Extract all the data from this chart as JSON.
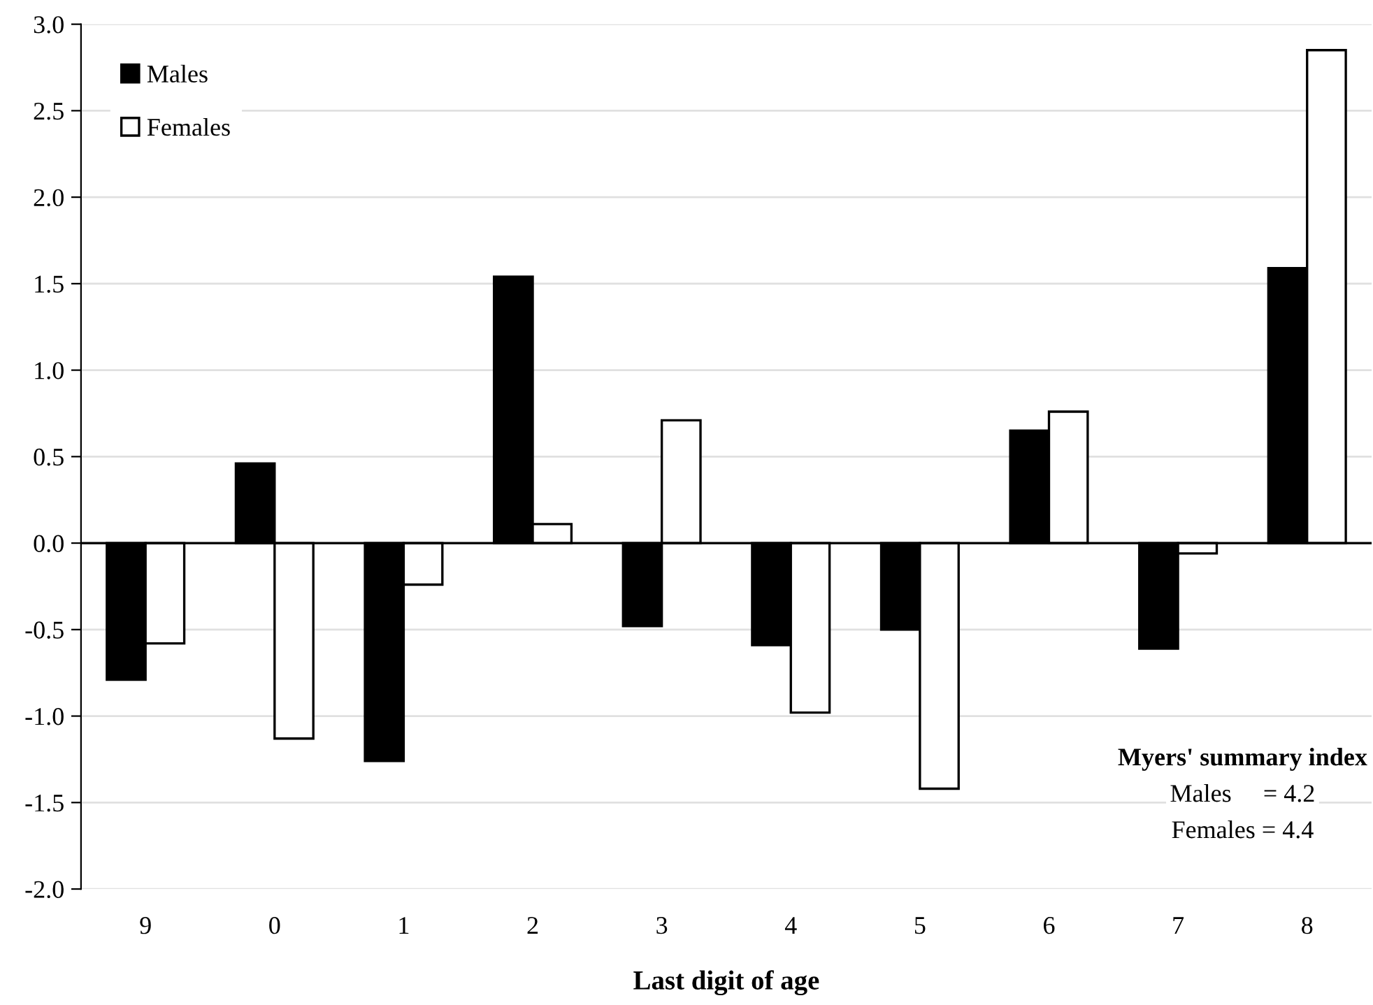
{
  "chart_data": {
    "type": "bar",
    "xlabel": "Last digit of age",
    "categories": [
      "9",
      "0",
      "1",
      "2",
      "3",
      "4",
      "5",
      "6",
      "7",
      "8"
    ],
    "series": [
      {
        "name": "Males",
        "color": "#000000",
        "values": [
          -0.79,
          0.46,
          -1.26,
          1.54,
          -0.48,
          -0.59,
          -0.5,
          0.65,
          -0.61,
          1.59
        ]
      },
      {
        "name": "Females",
        "color": "#ffffff",
        "values": [
          -0.58,
          -1.13,
          -0.24,
          0.11,
          0.71,
          -0.98,
          -1.42,
          0.76,
          -0.06,
          2.85
        ]
      }
    ],
    "ylim": [
      -2.0,
      3.0
    ],
    "yticks": [
      {
        "value": -2.0,
        "label": "-2.0"
      },
      {
        "value": -1.5,
        "label": "-1.5"
      },
      {
        "value": -1.0,
        "label": "-1.0"
      },
      {
        "value": -0.5,
        "label": "-0.5"
      },
      {
        "value": 0.0,
        "label": "0.0"
      },
      {
        "value": 0.5,
        "label": "0.5"
      },
      {
        "value": 1.0,
        "label": "1.0"
      },
      {
        "value": 1.5,
        "label": "1.5"
      },
      {
        "value": 2.0,
        "label": "2.0"
      },
      {
        "value": 2.5,
        "label": "2.5"
      },
      {
        "value": 3.0,
        "label": "3.0"
      }
    ],
    "grid": "y",
    "legend": "top left",
    "annotations": [
      "Myers' summary index",
      "Males     = 4.2",
      "Females = 4.4"
    ]
  }
}
